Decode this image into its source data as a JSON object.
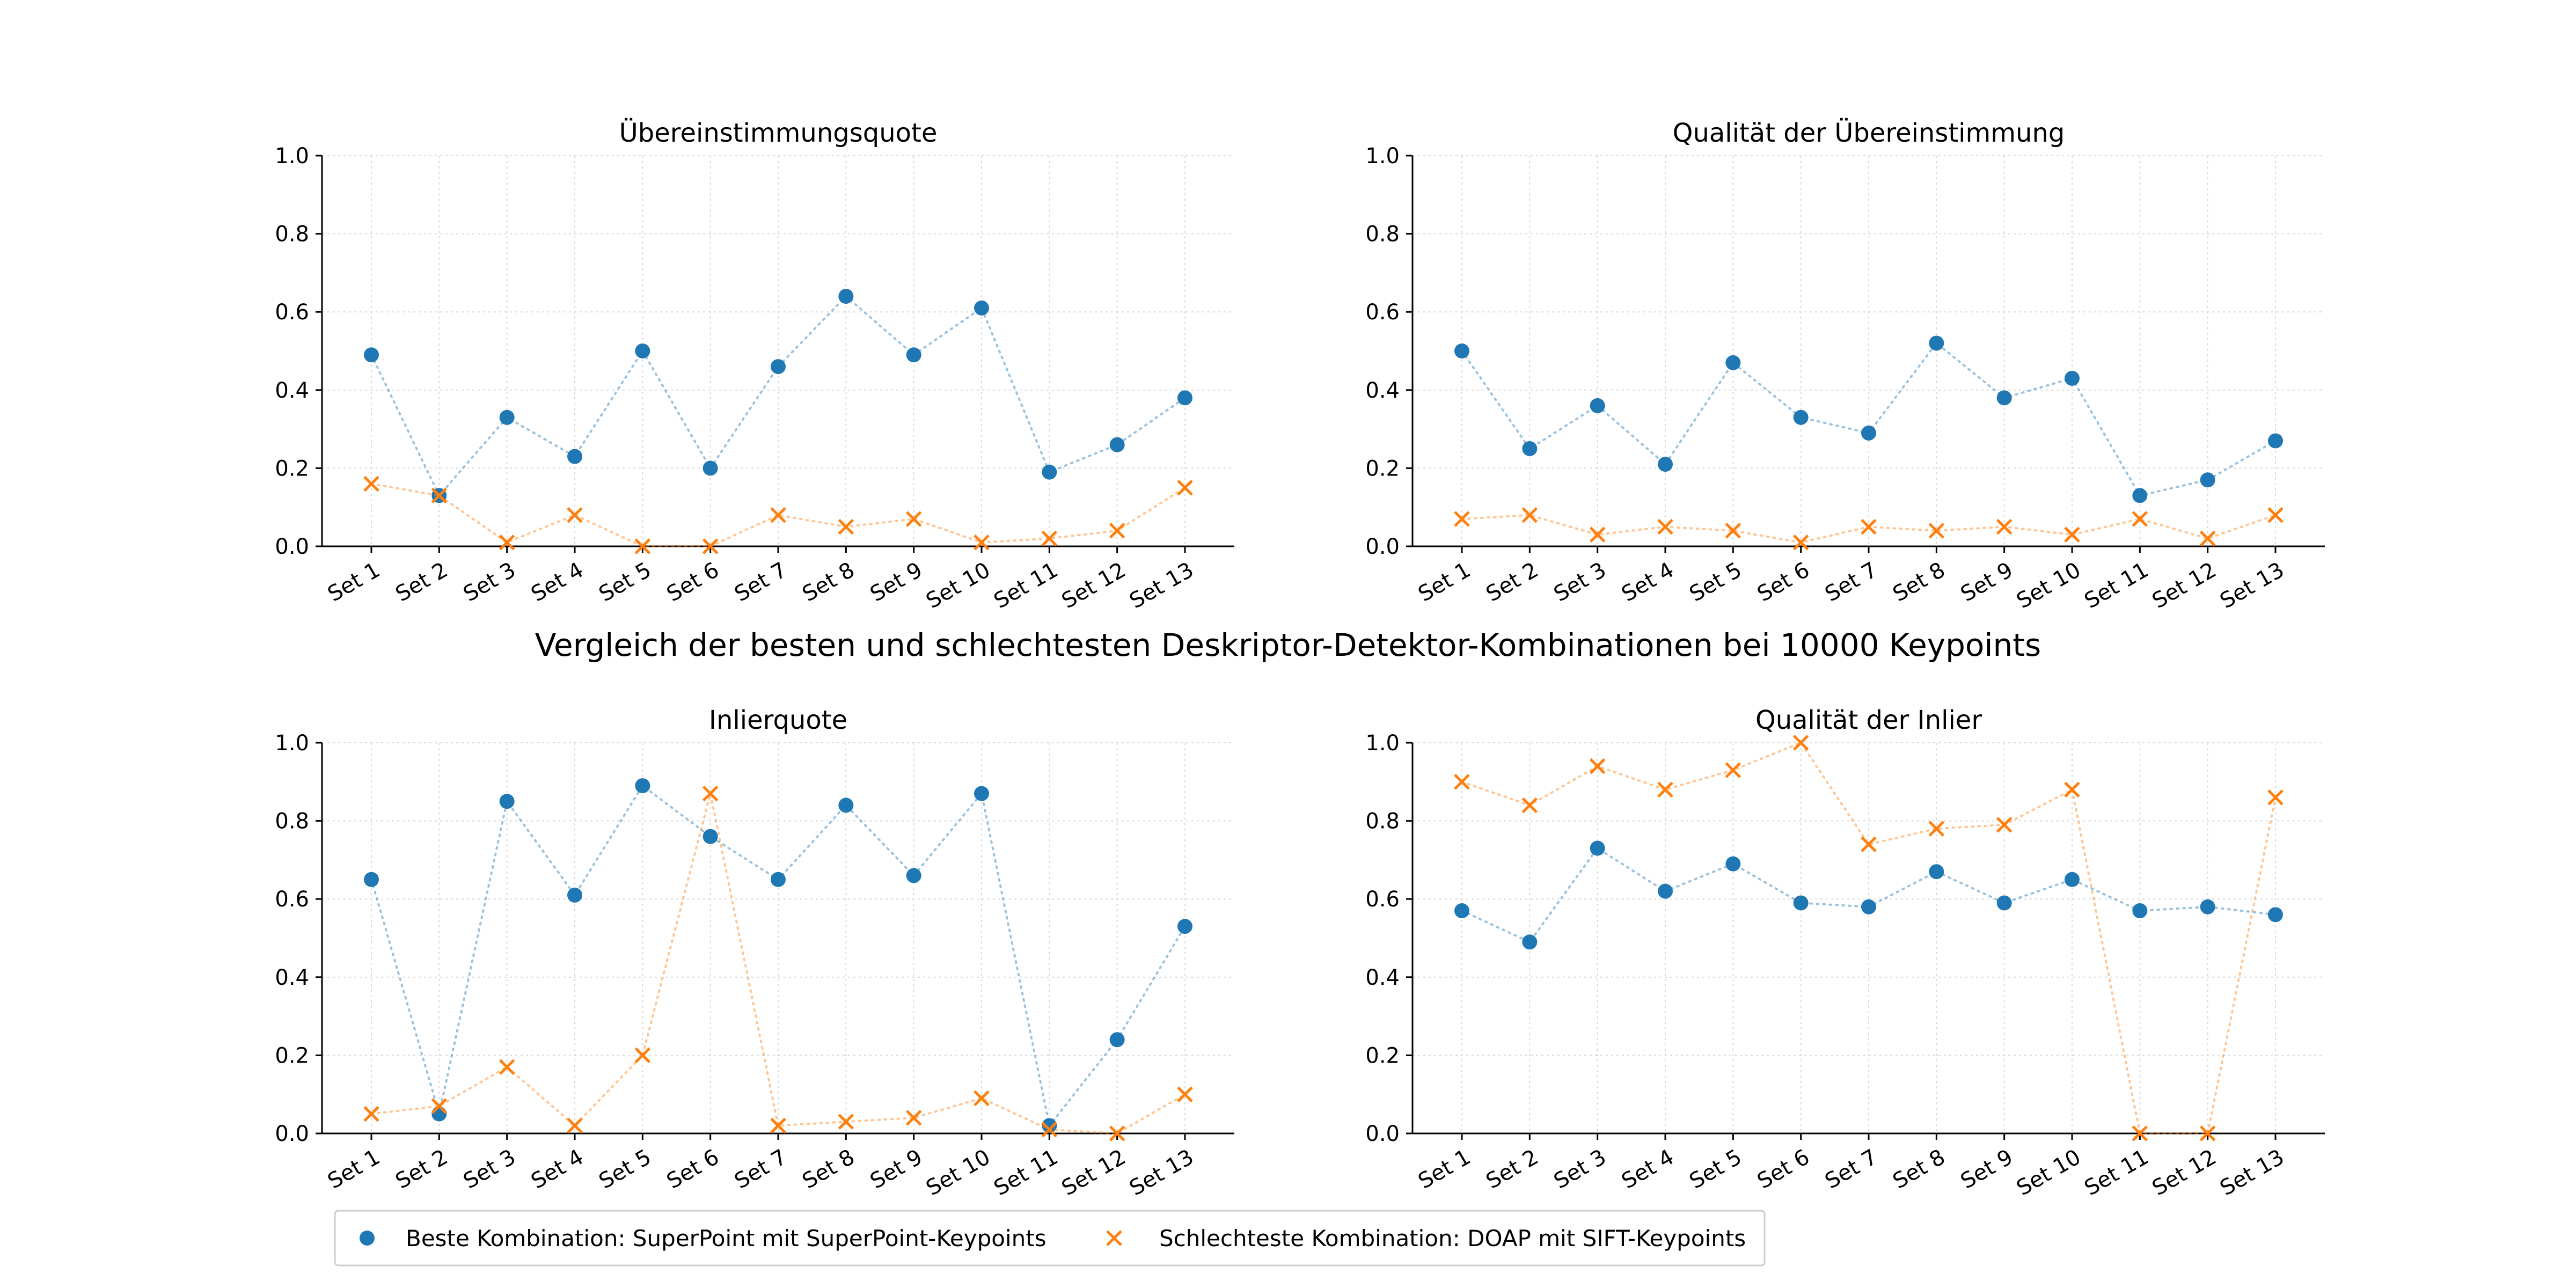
{
  "suptitle": "Vergleich der besten und schlechtesten Deskriptor-Detektor-Kombinationen bei 10000 Keypoints",
  "legend": {
    "best_label": "Beste Kombination: SuperPoint mit SuperPoint-Keypoints",
    "worst_label": "Schlechteste Kombination: DOAP mit SIFT-Keypoints"
  },
  "colors": {
    "best": "#1f77b4",
    "worst": "#ff7f0e"
  },
  "chart_data": [
    {
      "type": "scatter",
      "title": "Übereinstimmungsquote",
      "categories": [
        "Set 1",
        "Set 2",
        "Set 3",
        "Set 4",
        "Set 5",
        "Set 6",
        "Set 7",
        "Set 8",
        "Set 9",
        "Set 10",
        "Set 11",
        "Set 12",
        "Set 13"
      ],
      "ylim": [
        0,
        1
      ],
      "yticks": [
        "0.0",
        "0.2",
        "0.4",
        "0.6",
        "0.8",
        "1.0"
      ],
      "grid": true,
      "series": [
        {
          "name": "Beste Kombination: SuperPoint mit SuperPoint-Keypoints",
          "marker": "circle",
          "values": [
            0.49,
            0.13,
            0.33,
            0.23,
            0.5,
            0.2,
            0.46,
            0.64,
            0.49,
            0.61,
            0.19,
            0.26,
            0.38
          ]
        },
        {
          "name": "Schlechteste Kombination: DOAP mit SIFT-Keypoints",
          "marker": "x",
          "values": [
            0.16,
            0.13,
            0.01,
            0.08,
            0.0,
            0.0,
            0.08,
            0.05,
            0.07,
            0.01,
            0.02,
            0.04,
            0.15
          ]
        }
      ]
    },
    {
      "type": "scatter",
      "title": "Qualität der Übereinstimmung",
      "categories": [
        "Set 1",
        "Set 2",
        "Set 3",
        "Set 4",
        "Set 5",
        "Set 6",
        "Set 7",
        "Set 8",
        "Set 9",
        "Set 10",
        "Set 11",
        "Set 12",
        "Set 13"
      ],
      "ylim": [
        0,
        1
      ],
      "yticks": [
        "0.0",
        "0.2",
        "0.4",
        "0.6",
        "0.8",
        "1.0"
      ],
      "grid": true,
      "series": [
        {
          "name": "Beste Kombination: SuperPoint mit SuperPoint-Keypoints",
          "marker": "circle",
          "values": [
            0.5,
            0.25,
            0.36,
            0.21,
            0.47,
            0.33,
            0.29,
            0.52,
            0.38,
            0.43,
            0.13,
            0.17,
            0.27
          ]
        },
        {
          "name": "Schlechteste Kombination: DOAP mit SIFT-Keypoints",
          "marker": "x",
          "values": [
            0.07,
            0.08,
            0.03,
            0.05,
            0.04,
            0.01,
            0.05,
            0.04,
            0.05,
            0.03,
            0.07,
            0.02,
            0.08
          ]
        }
      ]
    },
    {
      "type": "scatter",
      "title": "Inlierquote",
      "categories": [
        "Set 1",
        "Set 2",
        "Set 3",
        "Set 4",
        "Set 5",
        "Set 6",
        "Set 7",
        "Set 8",
        "Set 9",
        "Set 10",
        "Set 11",
        "Set 12",
        "Set 13"
      ],
      "ylim": [
        0,
        1
      ],
      "yticks": [
        "0.0",
        "0.2",
        "0.4",
        "0.6",
        "0.8",
        "1.0"
      ],
      "grid": true,
      "series": [
        {
          "name": "Beste Kombination: SuperPoint mit SuperPoint-Keypoints",
          "marker": "circle",
          "values": [
            0.65,
            0.05,
            0.85,
            0.61,
            0.89,
            0.76,
            0.65,
            0.84,
            0.66,
            0.87,
            0.02,
            0.24,
            0.53
          ]
        },
        {
          "name": "Schlechteste Kombination: DOAP mit SIFT-Keypoints",
          "marker": "x",
          "values": [
            0.05,
            0.07,
            0.17,
            0.02,
            0.2,
            0.87,
            0.02,
            0.03,
            0.04,
            0.09,
            0.01,
            0.0,
            0.1
          ]
        }
      ]
    },
    {
      "type": "scatter",
      "title": "Qualität der Inlier",
      "categories": [
        "Set 1",
        "Set 2",
        "Set 3",
        "Set 4",
        "Set 5",
        "Set 6",
        "Set 7",
        "Set 8",
        "Set 9",
        "Set 10",
        "Set 11",
        "Set 12",
        "Set 13"
      ],
      "ylim": [
        0,
        1
      ],
      "yticks": [
        "0.0",
        "0.2",
        "0.4",
        "0.6",
        "0.8",
        "1.0"
      ],
      "grid": true,
      "series": [
        {
          "name": "Beste Kombination: SuperPoint mit SuperPoint-Keypoints",
          "marker": "circle",
          "values": [
            0.57,
            0.49,
            0.73,
            0.62,
            0.69,
            0.59,
            0.58,
            0.67,
            0.59,
            0.65,
            0.57,
            0.58,
            0.56
          ]
        },
        {
          "name": "Schlechteste Kombination: DOAP mit SIFT-Keypoints",
          "marker": "x",
          "values": [
            0.9,
            0.84,
            0.94,
            0.88,
            0.93,
            1.0,
            0.74,
            0.78,
            0.79,
            0.88,
            0.0,
            0.0,
            0.86
          ]
        }
      ]
    }
  ]
}
